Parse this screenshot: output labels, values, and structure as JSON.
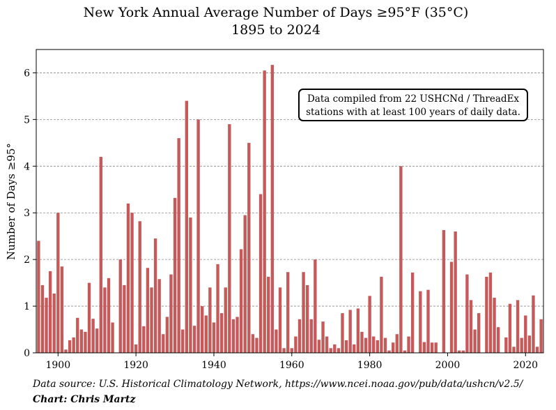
{
  "chart_data": {
    "type": "bar",
    "title": "New York Annual Average Number of Days ≥95°F (35°C)",
    "subtitle": "1895 to 2024",
    "xlabel": "",
    "ylabel": "Number of Days ≥95°",
    "ylim": [
      0,
      6.5
    ],
    "xlim": [
      1894.4,
      2024.6
    ],
    "grid": "horizontal dashed",
    "bar_color": "#c65a5a",
    "yticks": [
      0,
      1,
      2,
      3,
      4,
      5,
      6
    ],
    "xticks": [
      1900,
      1920,
      1940,
      1960,
      1980,
      2000,
      2020
    ],
    "x_start": 1895,
    "annotation": [
      "Data compiled from 22 USHCNd / ThreadEx",
      "stations with at least 100 years of daily data."
    ],
    "values": [
      2.4,
      1.45,
      1.18,
      1.75,
      1.27,
      3.0,
      1.85,
      0.07,
      0.27,
      0.33,
      0.75,
      0.5,
      0.45,
      1.5,
      0.73,
      0.52,
      4.2,
      1.4,
      1.6,
      0.65,
      0.0,
      2.0,
      1.45,
      3.2,
      3.0,
      0.18,
      2.82,
      0.57,
      1.82,
      1.4,
      2.45,
      1.58,
      0.4,
      0.77,
      1.68,
      3.32,
      4.6,
      0.5,
      5.4,
      2.9,
      0.58,
      5.0,
      1.0,
      0.8,
      1.4,
      0.65,
      1.9,
      0.85,
      1.4,
      4.9,
      0.72,
      0.77,
      2.22,
      2.95,
      4.5,
      0.4,
      0.32,
      3.4,
      6.05,
      1.63,
      6.17,
      0.5,
      1.4,
      0.1,
      1.73,
      0.1,
      0.35,
      0.72,
      1.73,
      1.45,
      0.72,
      2.0,
      0.28,
      0.67,
      0.35,
      0.1,
      0.18,
      0.1,
      0.85,
      0.27,
      0.92,
      0.18,
      0.95,
      0.45,
      0.32,
      1.22,
      0.35,
      0.27,
      1.63,
      0.32,
      0.05,
      0.22,
      0.4,
      4.0,
      0.05,
      0.35,
      1.72,
      0.0,
      1.32,
      0.23,
      1.35,
      0.22,
      0.22,
      0.0,
      2.63,
      0.0,
      1.95,
      2.6,
      0.05,
      0.05,
      1.68,
      1.13,
      0.5,
      0.85,
      0.0,
      1.63,
      1.72,
      1.18,
      0.55,
      0.0,
      0.33,
      1.05,
      0.13,
      1.13,
      0.32,
      0.8,
      0.37,
      1.23,
      0.13,
      0.72
    ]
  },
  "footer": {
    "source": "Data source: U.S. Historical Climatology Network, https://www.ncei.noaa.gov/pub/data/ushcn/v2.5/",
    "credit": "Chart: Chris Martz"
  }
}
